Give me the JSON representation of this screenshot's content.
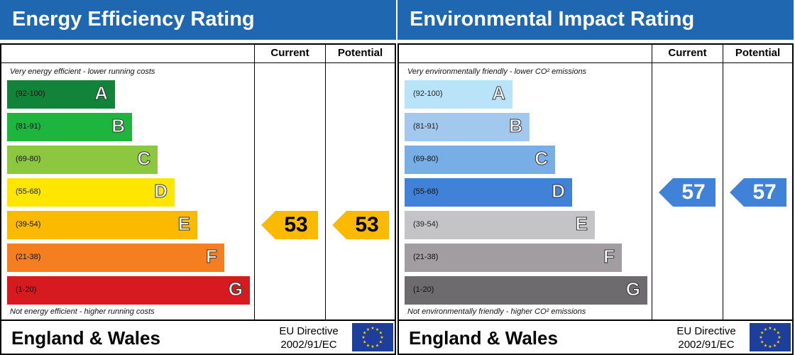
{
  "chart_data": [
    {
      "type": "bar",
      "title": "Energy Efficiency Rating",
      "columns": [
        "Current",
        "Potential"
      ],
      "top_note": "Very energy efficient - lower running costs",
      "bottom_note": "Not energy efficient - higher running costs",
      "bands": [
        {
          "letter": "A",
          "range": "(92-100)",
          "color": "#118439"
        },
        {
          "letter": "B",
          "range": "(81-91)",
          "color": "#1db53d"
        },
        {
          "letter": "C",
          "range": "(69-80)",
          "color": "#8dc63f"
        },
        {
          "letter": "D",
          "range": "(55-68)",
          "color": "#ffe600"
        },
        {
          "letter": "E",
          "range": "(39-54)",
          "color": "#fbb900"
        },
        {
          "letter": "F",
          "range": "(21-38)",
          "color": "#f57e20"
        },
        {
          "letter": "G",
          "range": "(1-20)",
          "color": "#d71920"
        }
      ],
      "current": {
        "value": 53,
        "color": "#fbb900",
        "text_color": "#000000"
      },
      "potential": {
        "value": 53,
        "color": "#fbb900",
        "text_color": "#000000"
      },
      "footer_country": "England & Wales",
      "directive_line1": "EU Directive",
      "directive_line2": "2002/91/EC"
    },
    {
      "type": "bar",
      "title": "Environmental Impact Rating",
      "columns": [
        "Current",
        "Potential"
      ],
      "top_note": "Very environmentally friendly - lower CO² emissions",
      "bottom_note": "Not environmentally friendly - higher CO² emissions",
      "bands": [
        {
          "letter": "A",
          "range": "(92-100)",
          "color": "#b9e3f8"
        },
        {
          "letter": "B",
          "range": "(81-91)",
          "color": "#a3c8ee"
        },
        {
          "letter": "C",
          "range": "(69-80)",
          "color": "#78aee6"
        },
        {
          "letter": "D",
          "range": "(55-68)",
          "color": "#3f82d8"
        },
        {
          "letter": "E",
          "range": "(39-54)",
          "color": "#c4c4c6"
        },
        {
          "letter": "F",
          "range": "(21-38)",
          "color": "#a29da1"
        },
        {
          "letter": "G",
          "range": "(1-20)",
          "color": "#6d6b6d"
        }
      ],
      "current": {
        "value": 57,
        "color": "#3f82d8",
        "text_color": "#ffffff"
      },
      "potential": {
        "value": 57,
        "color": "#3f82d8",
        "text_color": "#ffffff"
      },
      "footer_country": "England & Wales",
      "directive_line1": "EU Directive",
      "directive_line2": "2002/91/EC"
    }
  ]
}
